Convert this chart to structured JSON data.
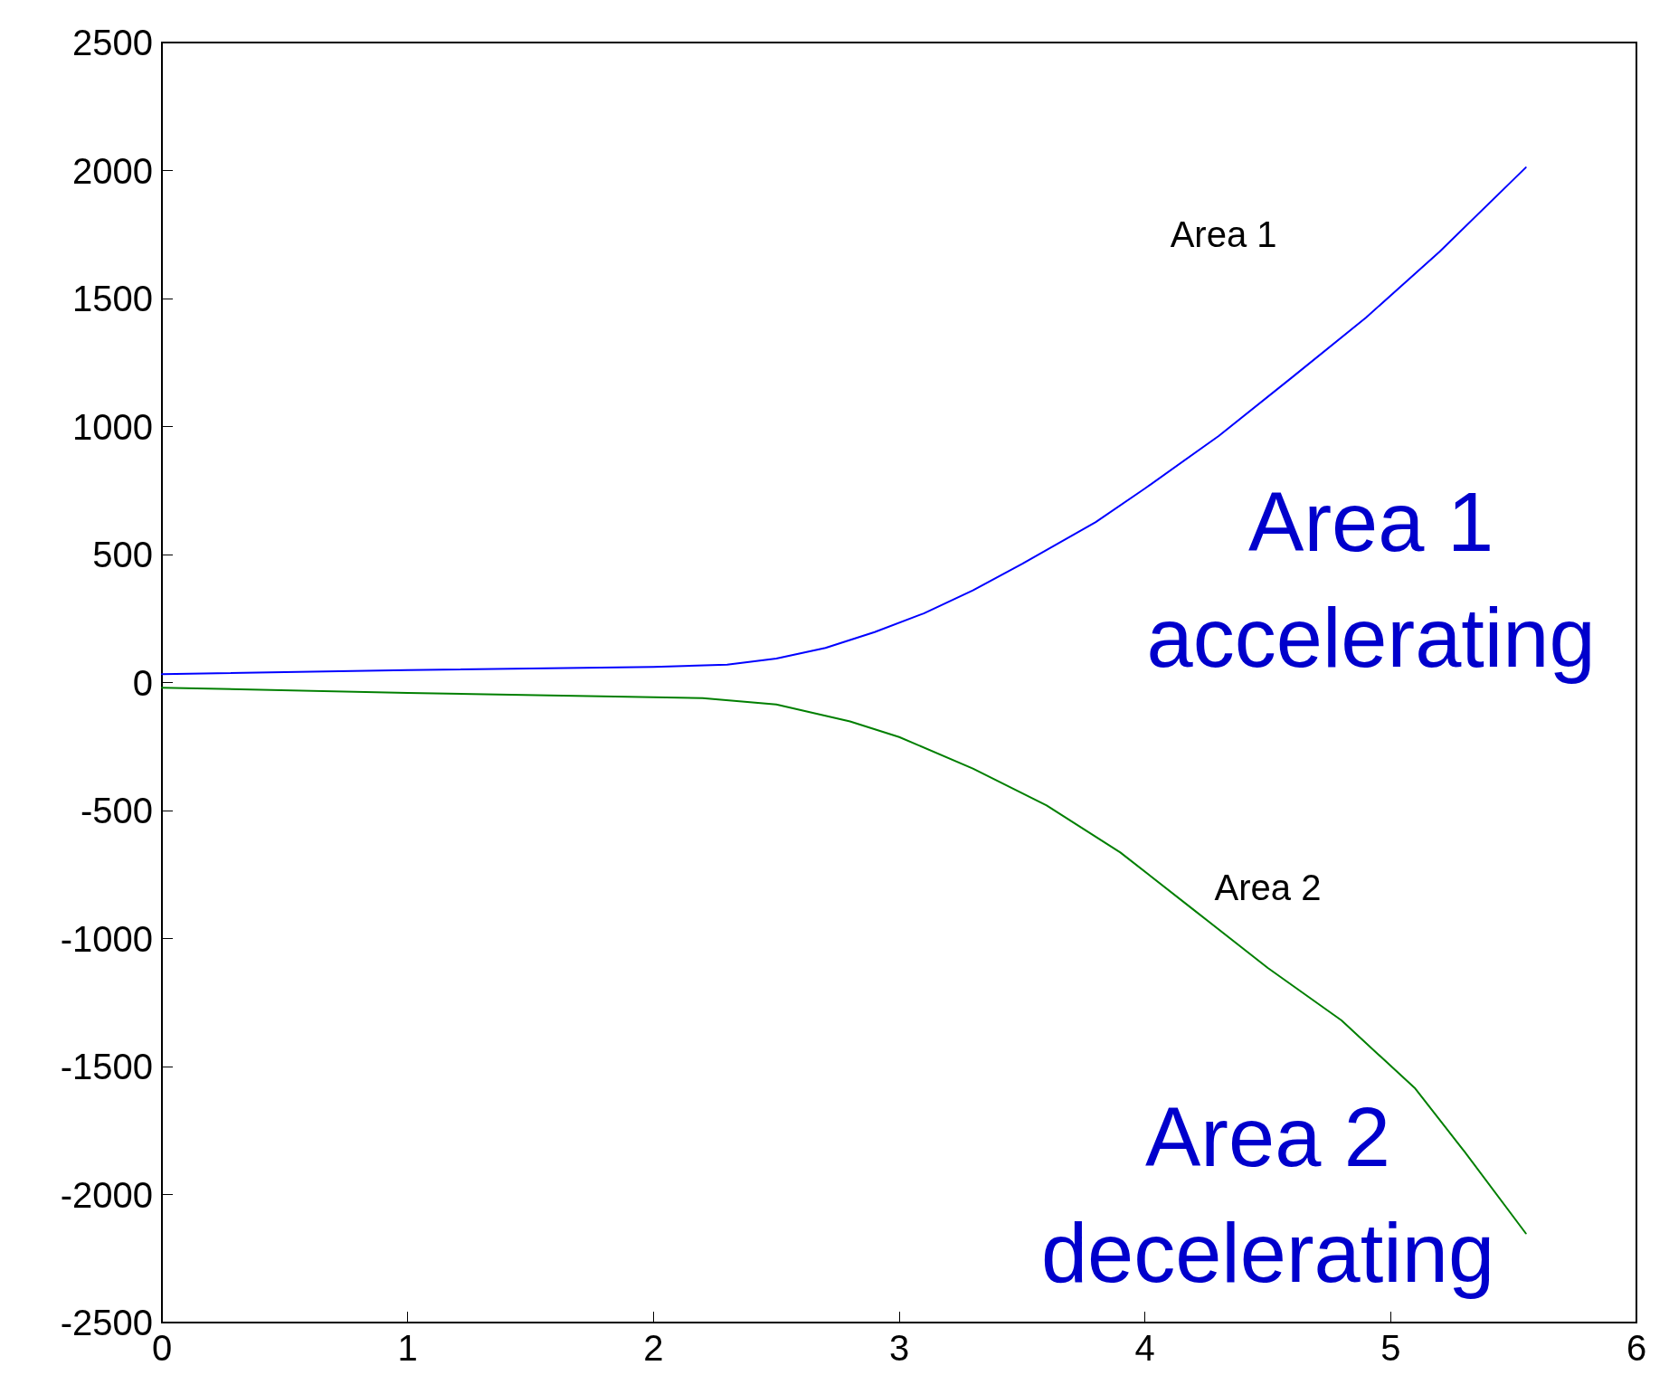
{
  "chart_data": {
    "type": "line",
    "xlim": [
      0,
      6
    ],
    "xticks": [
      0,
      1,
      2,
      3,
      4,
      5,
      6
    ],
    "ylim": [
      -2500,
      2500
    ],
    "yticks": [
      -2500,
      -2000,
      -1500,
      -1000,
      -500,
      0,
      500,
      1000,
      1500,
      2000,
      2500
    ],
    "grid": false,
    "marker": "none",
    "line_style": "solid",
    "series": [
      {
        "color": "#0000ff",
        "x": [
          0,
          1,
          2,
          2.3,
          2.5,
          2.7,
          2.9,
          3.1,
          3.3,
          3.5,
          3.8,
          4.0,
          4.3,
          4.6,
          4.9,
          5.2,
          5.55
        ],
        "values": [
          33,
          49,
          61,
          70,
          94,
          135,
          197,
          270,
          360,
          463,
          627,
          758,
          963,
          1193,
          1426,
          1684,
          2012
        ]
      },
      {
        "color": "#007f00",
        "x": [
          0,
          1,
          2,
          2.2,
          2.5,
          2.8,
          3.0,
          3.3,
          3.6,
          3.9,
          4.2,
          4.5,
          4.8,
          5.1,
          5.3,
          5.55
        ],
        "values": [
          -20,
          -41,
          -57,
          -61,
          -86,
          -152,
          -213,
          -336,
          -480,
          -664,
          -889,
          -1115,
          -1320,
          -1586,
          -1832,
          -2152
        ]
      }
    ],
    "annotations": [
      "Area 1",
      "Area 2",
      "Area 1\naccelerating",
      "Area 2\ndecelerating"
    ]
  }
}
